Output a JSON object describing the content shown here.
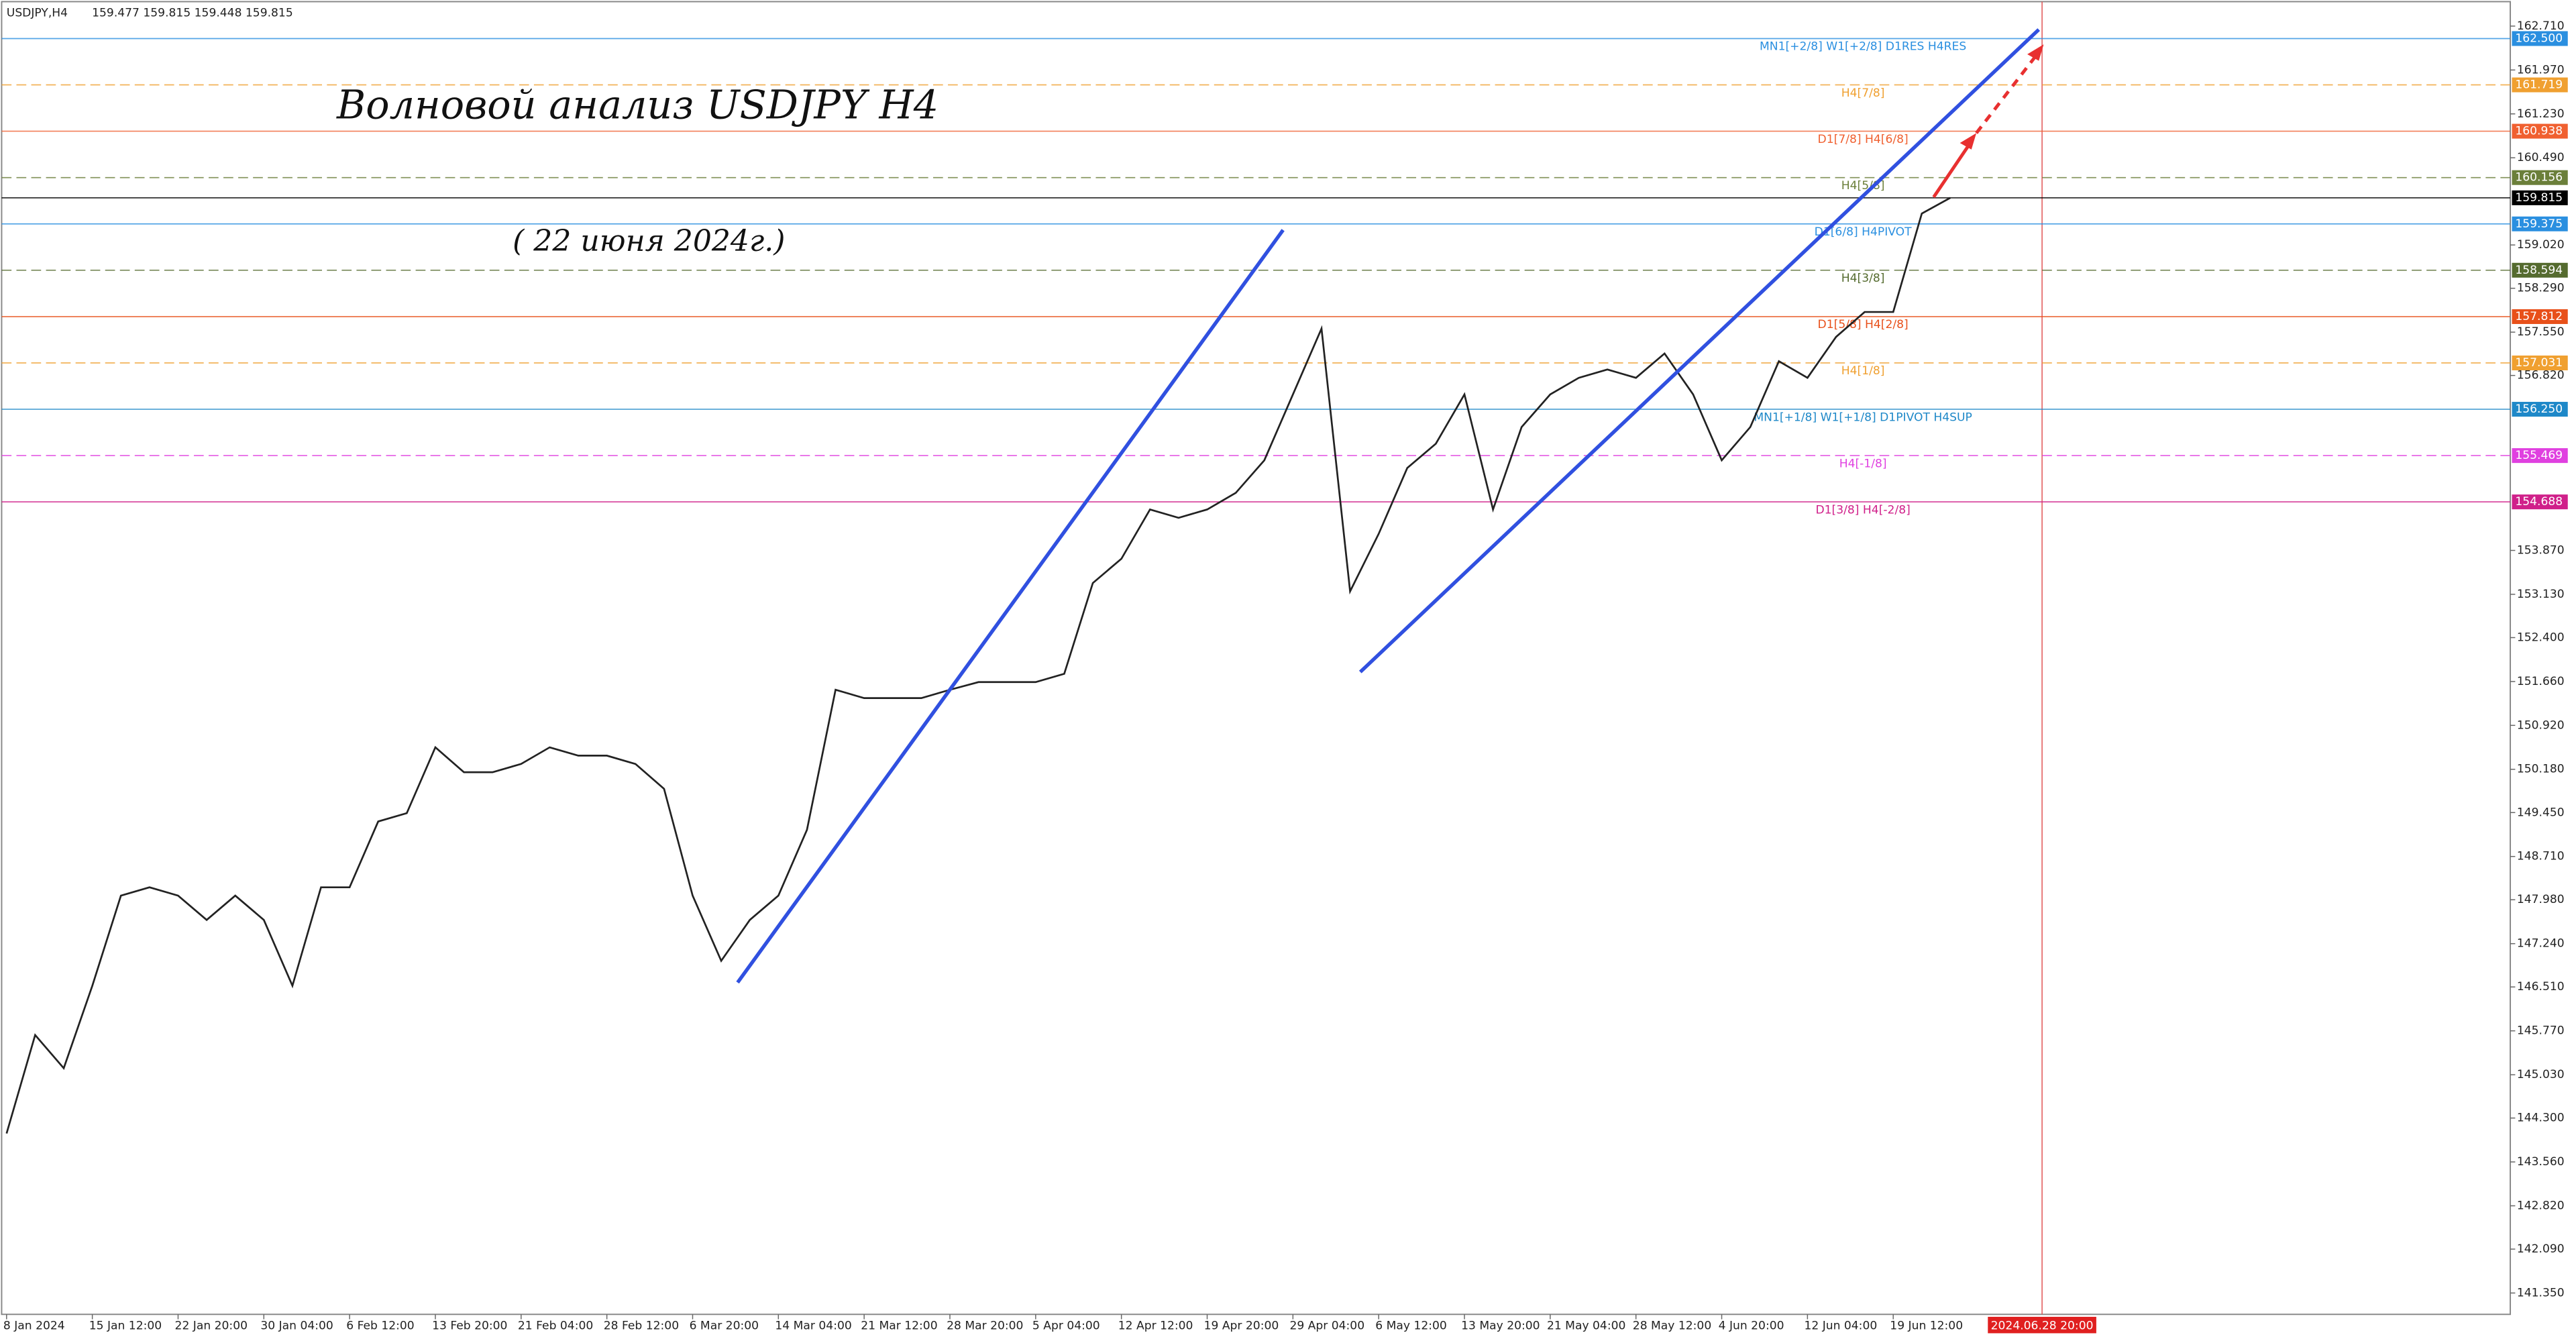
{
  "chart_data": {
    "type": "line",
    "symbol": "USDJPY,H4",
    "ohlc": "159.477 159.815 159.448 159.815",
    "title": "Волновой анализ USDJPY H4",
    "subtitle": "(  22 июня 2024г.)",
    "marker_label": "2024.06.28 20:00",
    "categories": [
      "8 Jan 2024",
      null,
      null,
      "15 Jan 12:00",
      null,
      null,
      "22 Jan 20:00",
      null,
      null,
      "30 Jan 04:00",
      null,
      null,
      "6 Feb 12:00",
      null,
      null,
      "13 Feb 20:00",
      null,
      null,
      "21 Feb 04:00",
      null,
      null,
      "28 Feb 12:00",
      null,
      null,
      "6 Mar 20:00",
      null,
      null,
      "14 Mar 04:00",
      null,
      null,
      "21 Mar 12:00",
      null,
      null,
      "28 Mar 20:00",
      null,
      null,
      "5 Apr 04:00",
      null,
      null,
      "12 Apr 12:00",
      null,
      null,
      "19 Apr 20:00",
      null,
      null,
      "29 Apr 04:00",
      null,
      null,
      "6 May 12:00",
      null,
      null,
      "13 May 20:00",
      null,
      null,
      "21 May 04:00",
      null,
      null,
      "28 May 12:00",
      null,
      null,
      "4 Jun 20:00",
      null,
      null,
      "12 Jun 04:00",
      null,
      null,
      "19 Jun 12:00",
      null,
      null
    ],
    "series": [
      {
        "name": "USDJPY",
        "color": "#222222",
        "values": [
          144.04,
          145.7,
          145.14,
          146.53,
          148.05,
          148.19,
          148.05,
          147.64,
          148.05,
          147.64,
          146.53,
          148.19,
          148.19,
          149.3,
          149.44,
          150.55,
          150.13,
          150.13,
          150.27,
          150.55,
          150.41,
          150.41,
          150.27,
          149.85,
          148.05,
          146.95,
          147.64,
          148.05,
          149.16,
          151.52,
          151.38,
          151.38,
          151.38,
          151.52,
          151.65,
          151.65,
          151.65,
          151.79,
          153.32,
          153.73,
          154.56,
          154.42,
          154.56,
          154.84,
          155.39,
          156.5,
          157.61,
          153.18,
          154.15,
          155.26,
          155.67,
          156.5,
          154.56,
          155.95,
          156.5,
          156.78,
          156.92,
          156.78,
          157.19,
          156.5,
          155.39,
          155.95,
          157.06,
          156.78,
          157.47,
          157.89,
          157.89,
          159.55,
          159.815
        ]
      }
    ],
    "ylim": [
      140.99,
      163.15
    ],
    "yticks": [
      {
        "value": 162.71,
        "label": "162.710"
      },
      {
        "value": 161.97,
        "label": "161.970"
      },
      {
        "value": 161.23,
        "label": "161.230"
      },
      {
        "value": 160.49,
        "label": "160.490"
      },
      {
        "value": 159.02,
        "label": "159.020"
      },
      {
        "value": 158.29,
        "label": "158.290"
      },
      {
        "value": 157.55,
        "label": "157.550"
      },
      {
        "value": 156.82,
        "label": "156.820"
      },
      {
        "value": 153.87,
        "label": "153.870"
      },
      {
        "value": 153.13,
        "label": "153.130"
      },
      {
        "value": 152.4,
        "label": "152.400"
      },
      {
        "value": 151.66,
        "label": "151.660"
      },
      {
        "value": 150.92,
        "label": "150.920"
      },
      {
        "value": 150.18,
        "label": "150.180"
      },
      {
        "value": 149.45,
        "label": "149.450"
      },
      {
        "value": 148.71,
        "label": "148.710"
      },
      {
        "value": 147.98,
        "label": "147.980"
      },
      {
        "value": 147.24,
        "label": "147.240"
      },
      {
        "value": 146.51,
        "label": "146.510"
      },
      {
        "value": 145.77,
        "label": "145.770"
      },
      {
        "value": 145.03,
        "label": "145.030"
      },
      {
        "value": 144.3,
        "label": "144.300"
      },
      {
        "value": 143.56,
        "label": "143.560"
      },
      {
        "value": 142.82,
        "label": "142.820"
      },
      {
        "value": 142.09,
        "label": "142.090"
      },
      {
        "value": 141.35,
        "label": "141.350"
      }
    ],
    "levels": [
      {
        "value": 162.5,
        "label": "162.500",
        "text": "MN1[+2/8] W1[+2/8] D1RES H4RES",
        "color": "#2a8fe0",
        "dashed": false
      },
      {
        "value": 161.719,
        "label": "161.719",
        "text": "H4[7/8]",
        "color": "#f0a030",
        "dashed": true
      },
      {
        "value": 160.938,
        "label": "160.938",
        "text": "D1[7/8] H4[6/8]",
        "color": "#f06030",
        "dashed": false
      },
      {
        "value": 160.156,
        "label": "160.156",
        "text": "H4[5/8]",
        "color": "#6b7f3a",
        "dashed": true
      },
      {
        "value": 159.815,
        "label": "159.815",
        "color": "#000000",
        "dashed": false
      },
      {
        "value": 159.375,
        "label": "159.375",
        "text": "D1[6/8] H4PIVOT",
        "color": "#2a8fe0",
        "dashed": false
      },
      {
        "value": 158.594,
        "label": "158.594",
        "text": "H4[3/8]",
        "color": "#556b2f",
        "dashed": true
      },
      {
        "value": 157.812,
        "label": "157.812",
        "text": "D1[5/8] H4[2/8]",
        "color": "#e8501a",
        "dashed": false
      },
      {
        "value": 157.031,
        "label": "157.031",
        "text": "H4[1/8]",
        "color": "#f0a030",
        "dashed": true
      },
      {
        "value": 156.25,
        "label": "156.250",
        "text": "MN1[+1/8] W1[+1/8] D1PIVOT H4SUP",
        "color": "#1e88c8",
        "dashed": false
      },
      {
        "value": 155.469,
        "label": "155.469",
        "text": "H4[-1/8]",
        "color": "#e040e0",
        "dashed": true
      },
      {
        "value": 154.688,
        "label": "154.688",
        "text": "D1[3/8] H4[-2/8]",
        "color": "#d0208a",
        "dashed": false
      }
    ]
  }
}
